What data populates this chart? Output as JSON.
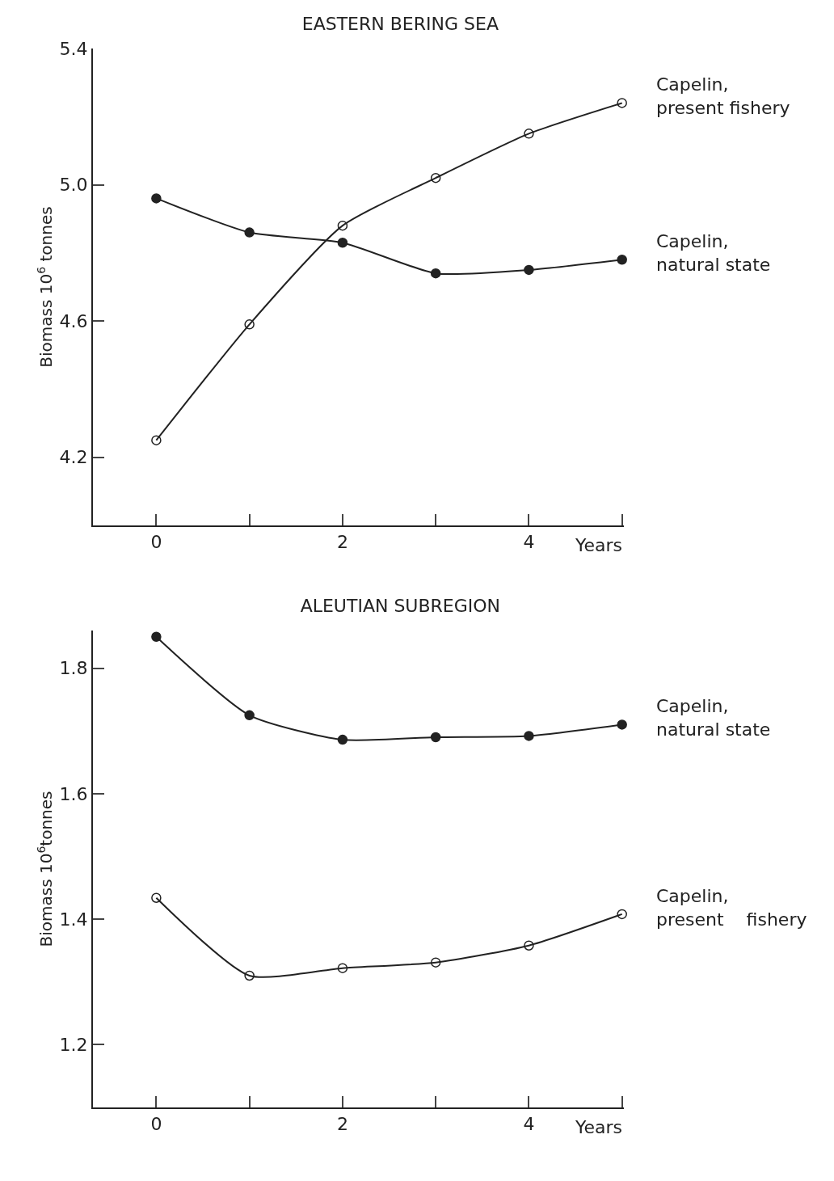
{
  "chart_data": [
    {
      "type": "line",
      "title": "EASTERN BERING SEA",
      "xlabel": "Years",
      "ylabel": "Biomass 10$^{6}$ tonnes",
      "x": [
        0,
        1,
        2,
        3,
        4,
        5
      ],
      "series": [
        {
          "name": "Capelin,\npresent fishery",
          "color": "#222222",
          "marker": "circle-open",
          "values": [
            4.25,
            4.59,
            4.88,
            5.02,
            5.15,
            5.24
          ]
        },
        {
          "name": "Capelin,\nnatural state",
          "color": "#222222",
          "marker": "circle",
          "values": [
            4.96,
            4.86,
            4.83,
            4.74,
            4.75,
            4.78
          ]
        }
      ],
      "xlim": [
        -0.68,
        5.02
      ],
      "xticks": [
        0,
        {
          "value": 1,
          "label": null
        },
        2,
        {
          "value": 3,
          "label": null
        },
        4,
        {
          "value": 5,
          "label": null
        }
      ],
      "ylim": [
        4.0,
        5.4
      ],
      "yticks": [
        4.2,
        4.6,
        {
          "value": 5,
          "label": "5.0"
        },
        5.4
      ],
      "grid": false,
      "legend": false,
      "line_style": "solid"
    },
    {
      "type": "line",
      "title": "ALEUTIAN SUBREGION",
      "xlabel": "Years",
      "ylabel": "Biomass 10$^{6}$tonnes",
      "x": [
        0,
        1,
        2,
        3,
        4,
        5
      ],
      "series": [
        {
          "name": "Capelin,\nnatural state",
          "color": "#222222",
          "marker": "circle",
          "values": [
            1.85,
            1.725,
            1.686,
            1.69,
            1.692,
            1.71
          ]
        },
        {
          "name": "Capelin,\npresent    fishery",
          "color": "#222222",
          "marker": "circle-open",
          "values": [
            1.434,
            1.31,
            1.322,
            1.331,
            1.358,
            1.408
          ]
        }
      ],
      "xlim": [
        -0.68,
        5.02
      ],
      "xticks": [
        0,
        {
          "value": 1,
          "label": null
        },
        2,
        {
          "value": 3,
          "label": null
        },
        4,
        {
          "value": 5,
          "label": null
        }
      ],
      "ylim": [
        1.1,
        1.86
      ],
      "yticks": [
        1.2,
        1.4,
        1.6,
        1.8
      ],
      "grid": false,
      "legend": false,
      "line_style": "solid"
    }
  ]
}
